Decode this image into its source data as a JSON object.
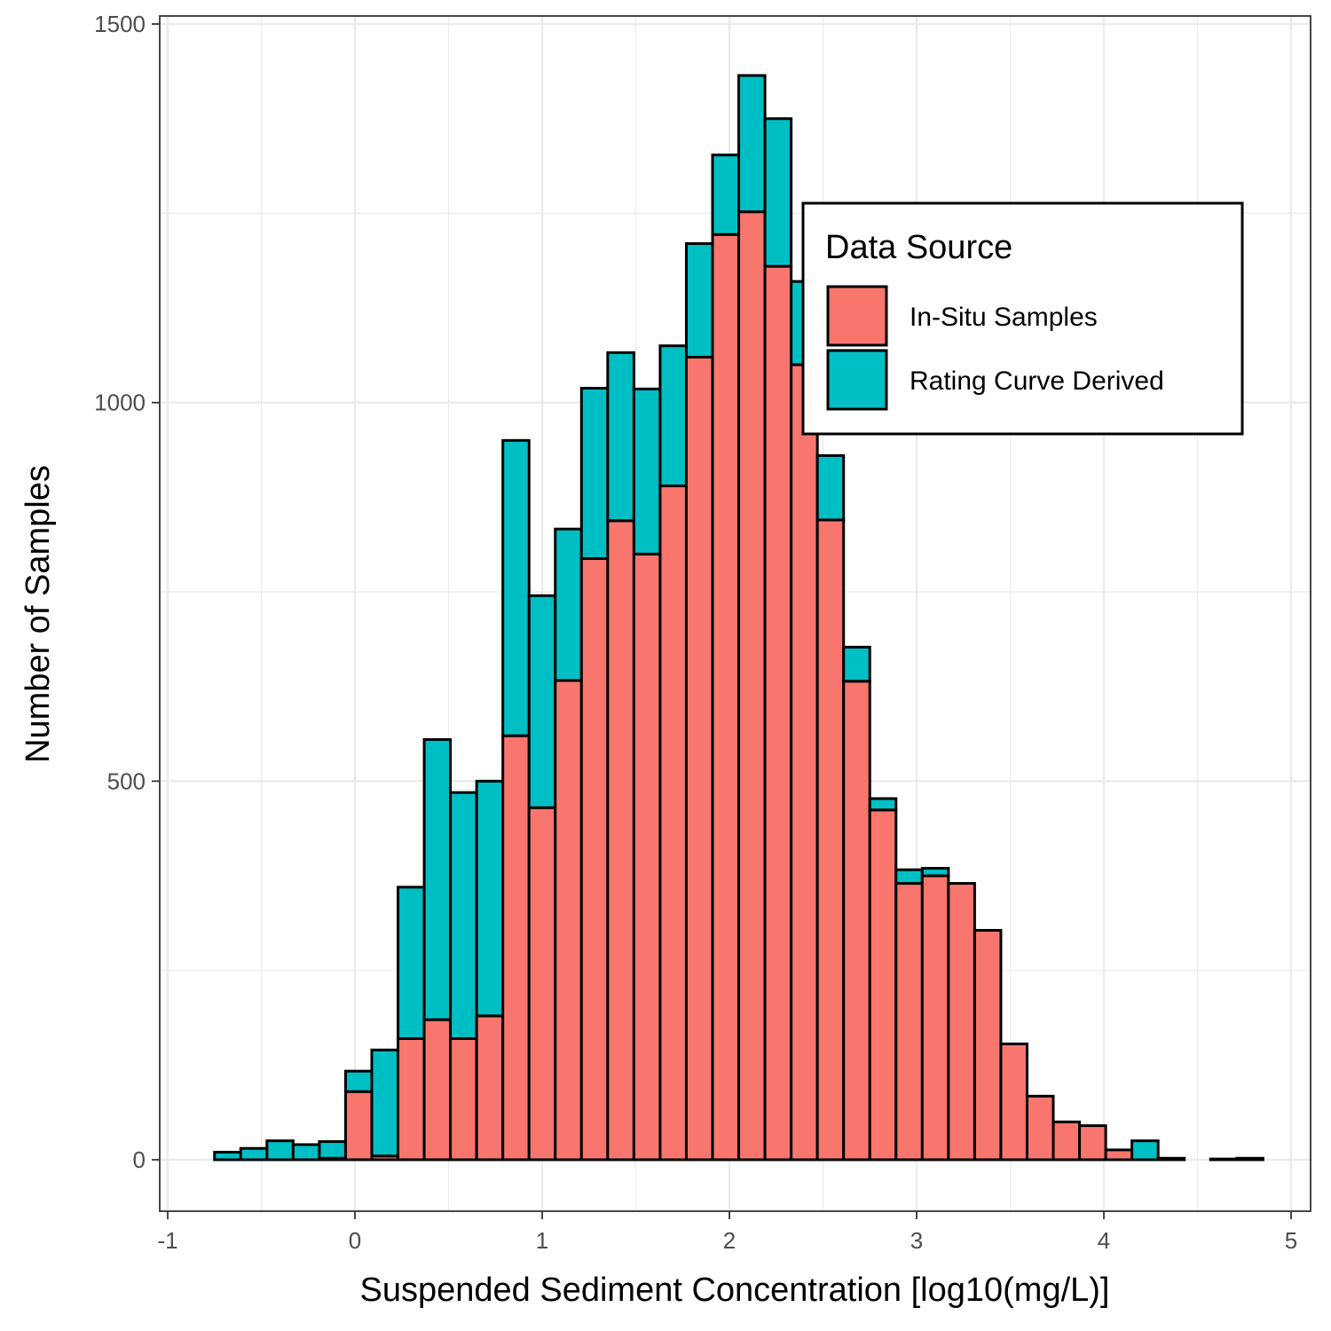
{
  "chart_data": {
    "type": "bar",
    "stacked": true,
    "xlabel": "Suspended Sediment Concentration [log10(mg/L)]",
    "ylabel": "Number of Samples",
    "xlim": [
      -1,
      5
    ],
    "ylim": [
      0,
      1500
    ],
    "x_ticks": [
      "-1",
      "0",
      "1",
      "2",
      "3",
      "4",
      "5"
    ],
    "y_ticks": [
      "0",
      "500",
      "1000",
      "1500"
    ],
    "grid": true,
    "legend": {
      "title": "Data Source",
      "placement": "top-right"
    },
    "bin_width": 0.14,
    "bin_centers": [
      -0.68,
      -0.54,
      -0.4,
      -0.26,
      -0.12,
      0.02,
      0.16,
      0.3,
      0.44,
      0.58,
      0.72,
      0.86,
      1.0,
      1.14,
      1.28,
      1.42,
      1.56,
      1.7,
      1.84,
      1.98,
      2.12,
      2.26,
      2.4,
      2.54,
      2.68,
      2.82,
      2.96,
      3.1,
      3.24,
      3.38,
      3.52,
      3.66,
      3.8,
      3.94,
      4.08,
      4.22,
      4.36,
      4.5,
      4.64,
      4.78
    ],
    "series": [
      {
        "name": "In-Situ Samples",
        "color": "#F8766D",
        "values": [
          0,
          0,
          0,
          0,
          2,
          90,
          5,
          160,
          185,
          160,
          190,
          560,
          465,
          633,
          794,
          844,
          800,
          890,
          1060,
          1222,
          1252,
          1180,
          1050,
          845,
          632,
          462,
          365,
          375,
          365,
          303,
          153,
          84,
          50,
          45,
          13,
          0,
          0,
          0,
          0,
          0
        ]
      },
      {
        "name": "Rating Curve Derived",
        "color": "#00BFC4",
        "values": [
          10,
          15,
          25,
          20,
          22,
          27,
          140,
          200,
          370,
          325,
          310,
          390,
          280,
          200,
          225,
          222,
          218,
          185,
          150,
          105,
          180,
          195,
          110,
          85,
          45,
          15,
          18,
          10,
          0,
          0,
          0,
          0,
          0,
          0,
          0,
          25,
          2,
          0,
          1,
          2
        ]
      }
    ]
  }
}
